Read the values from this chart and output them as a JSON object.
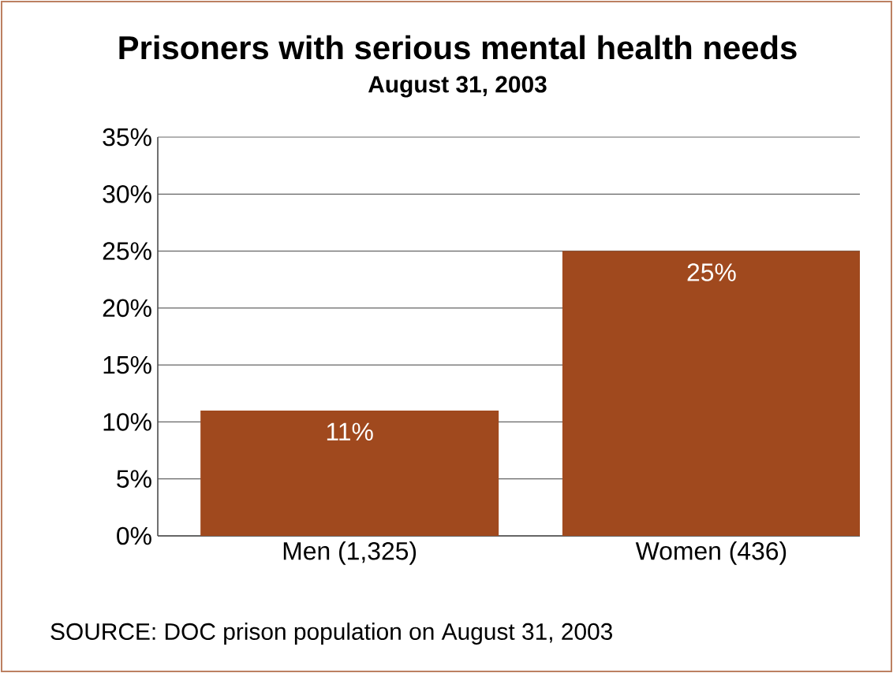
{
  "chart_data": {
    "type": "bar",
    "title": "Prisoners with serious mental health needs",
    "subtitle": "August  31, 2003",
    "categories": [
      "Men (1,325)",
      "Women (436)"
    ],
    "values": [
      11,
      25
    ],
    "value_labels": [
      "11%",
      "25%"
    ],
    "color": "#a0491e",
    "ylim": [
      0,
      35
    ],
    "yticks": [
      {
        "value": 0,
        "label": "0%"
      },
      {
        "value": 5,
        "label": "5%"
      },
      {
        "value": 10,
        "label": "10%"
      },
      {
        "value": 15,
        "label": "15%"
      },
      {
        "value": 20,
        "label": "20%"
      },
      {
        "value": 25,
        "label": "25%"
      },
      {
        "value": 30,
        "label": "30%"
      },
      {
        "value": 35,
        "label": "35%"
      }
    ],
    "grid": "y",
    "annotations": [
      "SOURCE: DOC prison population on August 31, 2003"
    ]
  }
}
